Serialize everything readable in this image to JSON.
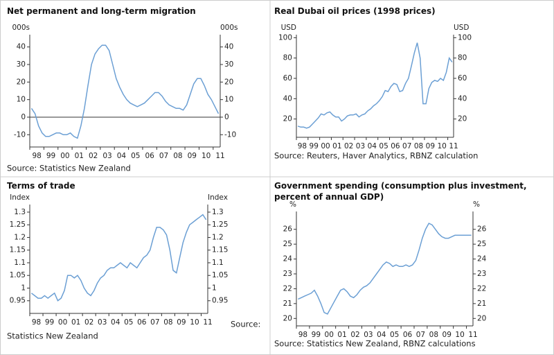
{
  "chart_data": [
    {
      "type": "line",
      "title": "Net permanent and long-term migration",
      "y_unit": "000s",
      "categories": [
        "98",
        null,
        null,
        null,
        "99",
        null,
        null,
        null,
        "00",
        null,
        null,
        null,
        "01",
        null,
        null,
        null,
        "02",
        null,
        null,
        null,
        "03",
        null,
        null,
        null,
        "04",
        null,
        null,
        null,
        "05",
        null,
        null,
        null,
        "06",
        null,
        null,
        null,
        "07",
        null,
        null,
        null,
        "08",
        null,
        null,
        null,
        "09",
        null,
        null,
        null,
        "10",
        null,
        null,
        null,
        "11",
        null
      ],
      "values": [
        5,
        2,
        -5,
        -9,
        -11,
        -11,
        -10,
        -9,
        -9,
        -10,
        -10,
        -9,
        -11,
        -12,
        -5,
        5,
        18,
        30,
        36,
        39,
        41,
        41,
        38,
        30,
        22,
        17,
        13,
        10,
        8,
        7,
        6,
        7,
        8,
        10,
        12,
        14,
        14,
        12,
        9,
        7,
        6,
        5,
        5,
        4,
        7,
        13,
        19,
        22,
        22,
        18,
        13,
        10,
        6,
        2
      ],
      "color": "#6b9fd4",
      "ylim": [
        -17,
        47
      ],
      "yticks": [
        -10,
        0,
        10,
        20,
        30,
        40
      ],
      "zero_line": true,
      "source": "Source: Statistics New Zealand"
    },
    {
      "type": "line",
      "title": "Real Dubai oil prices (1998 prices)",
      "y_unit": "USD",
      "categories": [
        "98",
        null,
        null,
        null,
        "99",
        null,
        null,
        null,
        "00",
        null,
        null,
        null,
        "01",
        null,
        null,
        null,
        "02",
        null,
        null,
        null,
        "03",
        null,
        null,
        null,
        "04",
        null,
        null,
        null,
        "05",
        null,
        null,
        null,
        "06",
        null,
        null,
        null,
        "07",
        null,
        null,
        null,
        "08",
        null,
        null,
        null,
        "09",
        null,
        null,
        null,
        "10",
        null,
        null,
        null,
        "11",
        null
      ],
      "values": [
        13,
        12,
        12,
        11,
        12,
        15,
        18,
        21,
        25,
        24,
        26,
        27,
        24,
        22,
        22,
        18,
        20,
        23,
        24,
        24,
        25,
        22,
        24,
        25,
        28,
        30,
        33,
        35,
        38,
        42,
        48,
        47,
        52,
        55,
        54,
        47,
        48,
        55,
        60,
        72,
        85,
        95,
        80,
        35,
        35,
        50,
        56,
        58,
        57,
        60,
        58,
        66,
        80,
        76
      ],
      "color": "#6b9fd4",
      "ylim": [
        2,
        103
      ],
      "yticks": [
        20,
        40,
        60,
        80,
        100
      ],
      "zero_line": false,
      "source": "Source: Reuters, Haver Analytics, RBNZ calculation"
    },
    {
      "type": "line",
      "title": "Terms of trade",
      "y_unit": "Index",
      "categories": [
        "98",
        null,
        null,
        null,
        "99",
        null,
        null,
        null,
        "00",
        null,
        null,
        null,
        "01",
        null,
        null,
        null,
        "02",
        null,
        null,
        null,
        "03",
        null,
        null,
        null,
        "04",
        null,
        null,
        null,
        "05",
        null,
        null,
        null,
        "06",
        null,
        null,
        null,
        "07",
        null,
        null,
        null,
        "08",
        null,
        null,
        null,
        "09",
        null,
        null,
        null,
        "10",
        null,
        null,
        null,
        "11",
        null
      ],
      "values": [
        0.98,
        0.97,
        0.96,
        0.96,
        0.97,
        0.96,
        0.97,
        0.98,
        0.95,
        0.96,
        0.99,
        1.05,
        1.05,
        1.04,
        1.05,
        1.03,
        1.0,
        0.98,
        0.97,
        0.99,
        1.02,
        1.04,
        1.05,
        1.07,
        1.08,
        1.08,
        1.09,
        1.1,
        1.09,
        1.08,
        1.1,
        1.09,
        1.08,
        1.1,
        1.12,
        1.13,
        1.15,
        1.2,
        1.24,
        1.24,
        1.23,
        1.21,
        1.15,
        1.07,
        1.06,
        1.12,
        1.18,
        1.22,
        1.25,
        1.26,
        1.27,
        1.28,
        1.29,
        1.27
      ],
      "color": "#6b9fd4",
      "ylim": [
        0.9,
        1.33
      ],
      "yticks": [
        0.95,
        1,
        1.05,
        1.1,
        1.15,
        1.2,
        1.25,
        1.3
      ],
      "zero_line": false,
      "source": [
        "Source:",
        "Statistics New Zealand"
      ]
    },
    {
      "type": "line",
      "title": "Government spending (consumption plus investment, percent of annual GDP)",
      "y_unit": "%",
      "categories": [
        "98",
        null,
        null,
        null,
        "99",
        null,
        null,
        null,
        "00",
        null,
        null,
        null,
        "01",
        null,
        null,
        null,
        "02",
        null,
        null,
        null,
        "03",
        null,
        null,
        null,
        "04",
        null,
        null,
        null,
        "05",
        null,
        null,
        null,
        "06",
        null,
        null,
        null,
        "07",
        null,
        null,
        null,
        "08",
        null,
        null,
        null,
        "09",
        null,
        null,
        null,
        "10",
        null,
        null,
        null,
        "11",
        null
      ],
      "values": [
        21.3,
        21.4,
        21.5,
        21.6,
        21.7,
        21.9,
        21.5,
        21.0,
        20.4,
        20.3,
        20.7,
        21.1,
        21.5,
        21.9,
        22.0,
        21.8,
        21.5,
        21.4,
        21.6,
        21.9,
        22.1,
        22.2,
        22.4,
        22.7,
        23.0,
        23.3,
        23.6,
        23.8,
        23.7,
        23.5,
        23.6,
        23.5,
        23.5,
        23.6,
        23.5,
        23.6,
        23.9,
        24.6,
        25.4,
        26.0,
        26.4,
        26.3,
        26.0,
        25.7,
        25.5,
        25.4,
        25.4,
        25.5,
        25.6,
        25.6,
        25.6,
        25.6,
        25.6,
        25.6
      ],
      "color": "#6b9fd4",
      "ylim": [
        19.5,
        27.2
      ],
      "yticks": [
        20,
        21,
        22,
        23,
        24,
        25,
        26
      ],
      "zero_line": false,
      "source": "Source: Statistics New Zealand, RBNZ calculations"
    }
  ]
}
